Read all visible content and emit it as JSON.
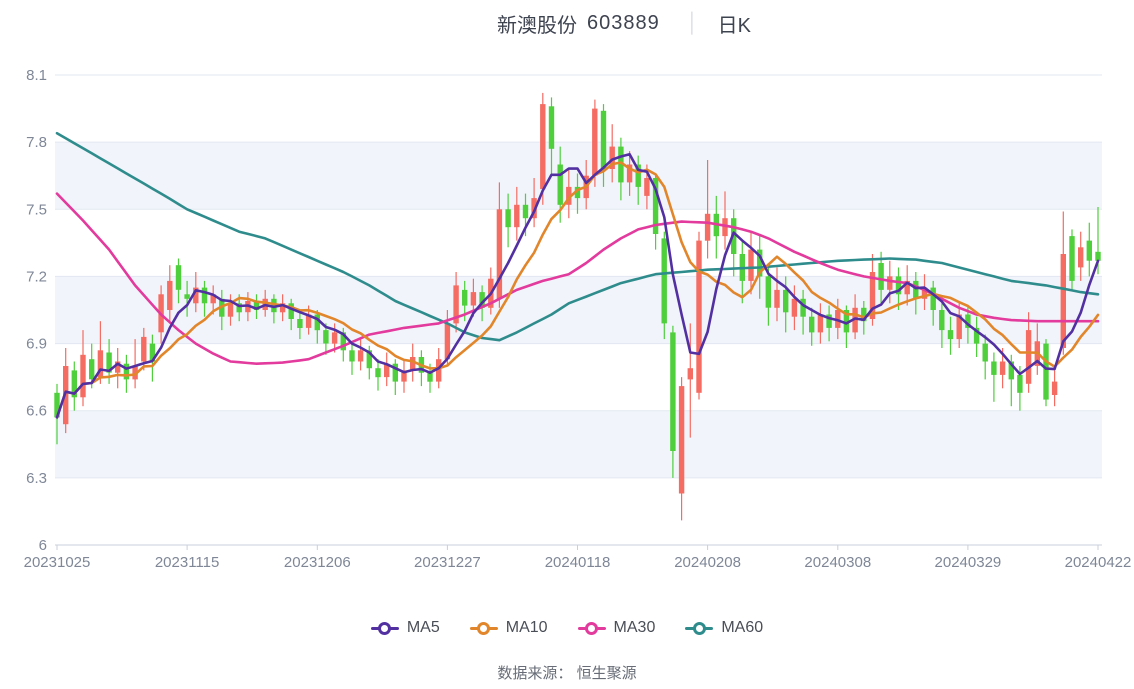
{
  "title": {
    "stock_name": "新澳股份",
    "stock_code": "603889",
    "separator": "│",
    "period": "日K"
  },
  "legend": {
    "items": [
      {
        "label": "MA5",
        "color_key": "ma5"
      },
      {
        "label": "MA10",
        "color_key": "ma10"
      },
      {
        "label": "MA30",
        "color_key": "ma30"
      },
      {
        "label": "MA60",
        "color_key": "ma60"
      }
    ]
  },
  "footer": {
    "text": "数据来源： 恒生聚源"
  },
  "chart_data": {
    "type": "candlestick",
    "title": "新澳股份 603889 日K",
    "legend_entries": [
      "MA5",
      "MA10",
      "MA30",
      "MA60"
    ],
    "colors": {
      "up": "#f46c62",
      "down": "#4ecf3b",
      "ma5": "#5230a2",
      "ma10": "#e2862c",
      "ma30": "#e23a9d",
      "ma60": "#2f8c8d",
      "grid_band": "#f1f4fa",
      "grid_line": "#e2e7f1",
      "axis_line": "#c9cfdb",
      "axis_label": "#7f8797",
      "tick_color": "#c9cfdb"
    },
    "y_axis": {
      "min": 6,
      "max": 8.1,
      "ticks": [
        8.1,
        7.8,
        7.5,
        7.2,
        6.9,
        6.6,
        6.3,
        6
      ],
      "banded": true
    },
    "x_axis": {
      "ticks": [
        {
          "index": 0,
          "label": "20231025"
        },
        {
          "index": 15,
          "label": "20231115"
        },
        {
          "index": 30,
          "label": "20231206"
        },
        {
          "index": 45,
          "label": "20231227"
        },
        {
          "index": 60,
          "label": "20240118"
        },
        {
          "index": 75,
          "label": "20240208"
        },
        {
          "index": 90,
          "label": "20240308"
        },
        {
          "index": 105,
          "label": "20240329"
        },
        {
          "index": 120,
          "label": "20240422"
        }
      ]
    },
    "candles_format": [
      "open",
      "close",
      "low",
      "high"
    ],
    "candles": [
      [
        6.68,
        6.57,
        6.45,
        6.72
      ],
      [
        6.54,
        6.8,
        6.5,
        6.88
      ],
      [
        6.78,
        6.66,
        6.6,
        6.82
      ],
      [
        6.66,
        6.85,
        6.62,
        6.96
      ],
      [
        6.83,
        6.74,
        6.7,
        6.9
      ],
      [
        6.75,
        6.87,
        6.72,
        7.0
      ],
      [
        6.86,
        6.77,
        6.72,
        6.92
      ],
      [
        6.77,
        6.82,
        6.7,
        6.88
      ],
      [
        6.81,
        6.74,
        6.68,
        6.85
      ],
      [
        6.74,
        6.8,
        6.7,
        6.92
      ],
      [
        6.82,
        6.93,
        6.78,
        6.97
      ],
      [
        6.9,
        6.82,
        6.73,
        6.94
      ],
      [
        6.95,
        7.12,
        6.9,
        7.16
      ],
      [
        7.05,
        7.18,
        7.0,
        7.25
      ],
      [
        7.25,
        7.14,
        7.08,
        7.28
      ],
      [
        7.12,
        7.1,
        7.02,
        7.18
      ],
      [
        7.08,
        7.15,
        7.04,
        7.22
      ],
      [
        7.15,
        7.08,
        7.02,
        7.18
      ],
      [
        7.08,
        7.12,
        7.03,
        7.16
      ],
      [
        7.1,
        7.02,
        6.96,
        7.14
      ],
      [
        7.02,
        7.08,
        6.98,
        7.12
      ],
      [
        7.08,
        7.04,
        7.0,
        7.12
      ],
      [
        7.04,
        7.09,
        7.0,
        7.13
      ],
      [
        7.09,
        7.05,
        7.01,
        7.12
      ],
      [
        7.05,
        7.1,
        7.02,
        7.14
      ],
      [
        7.1,
        7.04,
        6.99,
        7.12
      ],
      [
        7.04,
        7.08,
        7.0,
        7.12
      ],
      [
        7.08,
        7.01,
        6.96,
        7.1
      ],
      [
        7.01,
        6.97,
        6.92,
        7.05
      ],
      [
        6.97,
        7.03,
        6.94,
        7.07
      ],
      [
        7.03,
        6.96,
        6.9,
        7.05
      ],
      [
        6.96,
        6.9,
        6.85,
        6.99
      ],
      [
        6.9,
        6.95,
        6.86,
        6.99
      ],
      [
        6.95,
        6.87,
        6.82,
        6.97
      ],
      [
        6.87,
        6.82,
        6.76,
        6.9
      ],
      [
        6.82,
        6.87,
        6.78,
        6.92
      ],
      [
        6.87,
        6.79,
        6.74,
        6.89
      ],
      [
        6.79,
        6.75,
        6.69,
        6.83
      ],
      [
        6.75,
        6.81,
        6.71,
        6.86
      ],
      [
        6.81,
        6.73,
        6.67,
        6.83
      ],
      [
        6.73,
        6.78,
        6.68,
        6.83
      ],
      [
        6.78,
        6.84,
        6.73,
        6.9
      ],
      [
        6.84,
        6.77,
        6.71,
        6.87
      ],
      [
        6.77,
        6.73,
        6.68,
        6.81
      ],
      [
        6.73,
        6.83,
        6.7,
        6.88
      ],
      [
        6.83,
        6.99,
        6.8,
        7.05
      ],
      [
        6.99,
        7.16,
        6.95,
        7.22
      ],
      [
        7.14,
        7.07,
        7.0,
        7.18
      ],
      [
        7.07,
        7.13,
        7.02,
        7.19
      ],
      [
        7.13,
        7.06,
        7.0,
        7.16
      ],
      [
        7.06,
        7.19,
        7.03,
        7.24
      ],
      [
        7.1,
        7.5,
        7.06,
        7.62
      ],
      [
        7.5,
        7.42,
        7.33,
        7.57
      ],
      [
        7.42,
        7.52,
        7.36,
        7.6
      ],
      [
        7.52,
        7.46,
        7.38,
        7.57
      ],
      [
        7.46,
        7.55,
        7.42,
        7.64
      ],
      [
        7.59,
        7.97,
        7.52,
        8.02
      ],
      [
        7.96,
        7.77,
        7.65,
        8.0
      ],
      [
        7.7,
        7.52,
        7.44,
        7.78
      ],
      [
        7.52,
        7.6,
        7.46,
        7.68
      ],
      [
        7.6,
        7.55,
        7.48,
        7.66
      ],
      [
        7.55,
        7.65,
        7.5,
        7.72
      ],
      [
        7.65,
        7.95,
        7.6,
        7.99
      ],
      [
        7.94,
        7.68,
        7.6,
        7.97
      ],
      [
        7.68,
        7.78,
        7.62,
        7.88
      ],
      [
        7.78,
        7.62,
        7.54,
        7.82
      ],
      [
        7.62,
        7.7,
        7.56,
        7.76
      ],
      [
        7.7,
        7.6,
        7.52,
        7.74
      ],
      [
        7.56,
        7.64,
        7.5,
        7.7
      ],
      [
        7.64,
        7.39,
        7.32,
        7.66
      ],
      [
        7.37,
        6.99,
        6.92,
        7.4
      ],
      [
        6.95,
        6.42,
        6.3,
        6.98
      ],
      [
        6.23,
        6.71,
        6.11,
        6.75
      ],
      [
        6.74,
        6.79,
        6.48,
        6.99
      ],
      [
        6.68,
        7.36,
        6.65,
        7.4
      ],
      [
        7.36,
        7.48,
        7.28,
        7.72
      ],
      [
        7.48,
        7.38,
        7.28,
        7.56
      ],
      [
        7.38,
        7.46,
        7.32,
        7.58
      ],
      [
        7.46,
        7.3,
        7.2,
        7.5
      ],
      [
        7.3,
        7.18,
        7.08,
        7.36
      ],
      [
        7.18,
        7.32,
        7.12,
        7.4
      ],
      [
        7.32,
        7.2,
        7.1,
        7.38
      ],
      [
        7.2,
        7.06,
        6.98,
        7.26
      ],
      [
        7.06,
        7.14,
        7.0,
        7.24
      ],
      [
        7.14,
        7.04,
        6.95,
        7.2
      ],
      [
        7.02,
        7.1,
        6.96,
        7.16
      ],
      [
        7.1,
        7.02,
        6.94,
        7.14
      ],
      [
        7.02,
        6.95,
        6.89,
        7.06
      ],
      [
        6.95,
        7.03,
        6.9,
        7.08
      ],
      [
        7.03,
        6.97,
        6.91,
        7.07
      ],
      [
        6.97,
        7.05,
        6.92,
        7.1
      ],
      [
        7.05,
        6.95,
        6.88,
        7.07
      ],
      [
        6.95,
        7.06,
        6.92,
        7.12
      ],
      [
        7.06,
        7.0,
        6.94,
        7.09
      ],
      [
        7.01,
        7.22,
        6.98,
        7.3
      ],
      [
        7.26,
        7.14,
        7.08,
        7.31
      ],
      [
        7.14,
        7.2,
        7.08,
        7.27
      ],
      [
        7.2,
        7.12,
        7.05,
        7.24
      ],
      [
        7.12,
        7.18,
        7.07,
        7.25
      ],
      [
        7.18,
        7.1,
        7.03,
        7.22
      ],
      [
        7.1,
        7.15,
        7.05,
        7.21
      ],
      [
        7.15,
        7.05,
        6.98,
        7.18
      ],
      [
        7.05,
        6.96,
        6.88,
        7.08
      ],
      [
        6.96,
        6.92,
        6.85,
        7.02
      ],
      [
        6.92,
        7.03,
        6.88,
        7.08
      ],
      [
        7.03,
        6.97,
        6.9,
        7.07
      ],
      [
        6.97,
        6.9,
        6.84,
        7.02
      ],
      [
        6.9,
        6.82,
        6.74,
        6.94
      ],
      [
        6.82,
        6.76,
        6.64,
        6.86
      ],
      [
        6.76,
        6.82,
        6.7,
        6.88
      ],
      [
        6.82,
        6.74,
        6.62,
        6.85
      ],
      [
        6.76,
        6.68,
        6.6,
        6.8
      ],
      [
        6.72,
        6.96,
        6.68,
        7.04
      ],
      [
        6.8,
        6.91,
        6.76,
        6.99
      ],
      [
        6.9,
        6.65,
        6.62,
        6.92
      ],
      [
        6.67,
        6.73,
        6.62,
        6.78
      ],
      [
        6.88,
        7.3,
        6.85,
        7.49
      ],
      [
        7.38,
        7.18,
        7.14,
        7.41
      ],
      [
        7.24,
        7.33,
        7.18,
        7.4
      ],
      [
        7.36,
        7.27,
        7.2,
        7.44
      ],
      [
        7.31,
        7.27,
        7.21,
        7.51
      ]
    ],
    "ma_series": [
      {
        "name": "MA5",
        "period": 5,
        "color_key": "ma5"
      },
      {
        "name": "MA10",
        "period": 10,
        "color_key": "ma10"
      },
      {
        "name": "MA30",
        "color_key": "ma30",
        "anchors": [
          [
            0,
            7.57
          ],
          [
            3,
            7.45
          ],
          [
            6,
            7.32
          ],
          [
            9,
            7.16
          ],
          [
            12,
            7.03
          ],
          [
            14,
            6.96
          ],
          [
            16,
            6.9
          ],
          [
            18,
            6.855
          ],
          [
            20,
            6.82
          ],
          [
            23,
            6.81
          ],
          [
            26,
            6.815
          ],
          [
            29,
            6.83
          ],
          [
            31,
            6.86
          ],
          [
            33,
            6.89
          ],
          [
            36,
            6.94
          ],
          [
            40,
            6.97
          ],
          [
            44,
            6.99
          ],
          [
            47,
            7.03
          ],
          [
            50,
            7.08
          ],
          [
            53,
            7.14
          ],
          [
            56,
            7.18
          ],
          [
            59,
            7.21
          ],
          [
            61,
            7.26
          ],
          [
            63,
            7.32
          ],
          [
            65,
            7.37
          ],
          [
            67,
            7.41
          ],
          [
            69,
            7.43
          ],
          [
            72,
            7.445
          ],
          [
            75,
            7.44
          ],
          [
            78,
            7.42
          ],
          [
            80,
            7.4
          ],
          [
            82,
            7.37
          ],
          [
            85,
            7.31
          ],
          [
            88,
            7.26
          ],
          [
            90,
            7.23
          ],
          [
            93,
            7.2
          ],
          [
            96,
            7.18
          ],
          [
            98,
            7.17
          ],
          [
            100,
            7.14
          ],
          [
            102,
            7.1
          ],
          [
            104,
            7.06
          ],
          [
            106,
            7.03
          ],
          [
            108,
            7.015
          ],
          [
            110,
            7.005
          ],
          [
            113,
            7.0
          ],
          [
            116,
            7.0
          ],
          [
            120,
            7.0
          ]
        ]
      },
      {
        "name": "MA60",
        "color_key": "ma60",
        "anchors": [
          [
            0,
            7.84
          ],
          [
            4,
            7.75
          ],
          [
            8,
            7.66
          ],
          [
            12,
            7.57
          ],
          [
            15,
            7.5
          ],
          [
            18,
            7.45
          ],
          [
            21,
            7.4
          ],
          [
            24,
            7.37
          ],
          [
            27,
            7.32
          ],
          [
            30,
            7.27
          ],
          [
            33,
            7.22
          ],
          [
            36,
            7.16
          ],
          [
            39,
            7.09
          ],
          [
            42,
            7.04
          ],
          [
            45,
            6.99
          ],
          [
            47,
            6.95
          ],
          [
            49,
            6.925
          ],
          [
            51,
            6.915
          ],
          [
            53,
            6.95
          ],
          [
            55,
            6.99
          ],
          [
            57,
            7.03
          ],
          [
            59,
            7.08
          ],
          [
            61,
            7.11
          ],
          [
            63,
            7.14
          ],
          [
            65,
            7.17
          ],
          [
            67,
            7.19
          ],
          [
            69,
            7.21
          ],
          [
            72,
            7.22
          ],
          [
            75,
            7.23
          ],
          [
            78,
            7.235
          ],
          [
            81,
            7.24
          ],
          [
            84,
            7.25
          ],
          [
            87,
            7.26
          ],
          [
            90,
            7.27
          ],
          [
            93,
            7.275
          ],
          [
            96,
            7.28
          ],
          [
            99,
            7.275
          ],
          [
            102,
            7.26
          ],
          [
            104,
            7.24
          ],
          [
            106,
            7.22
          ],
          [
            108,
            7.2
          ],
          [
            110,
            7.18
          ],
          [
            112,
            7.17
          ],
          [
            114,
            7.16
          ],
          [
            116,
            7.145
          ],
          [
            118,
            7.13
          ],
          [
            120,
            7.12
          ]
        ]
      }
    ]
  }
}
